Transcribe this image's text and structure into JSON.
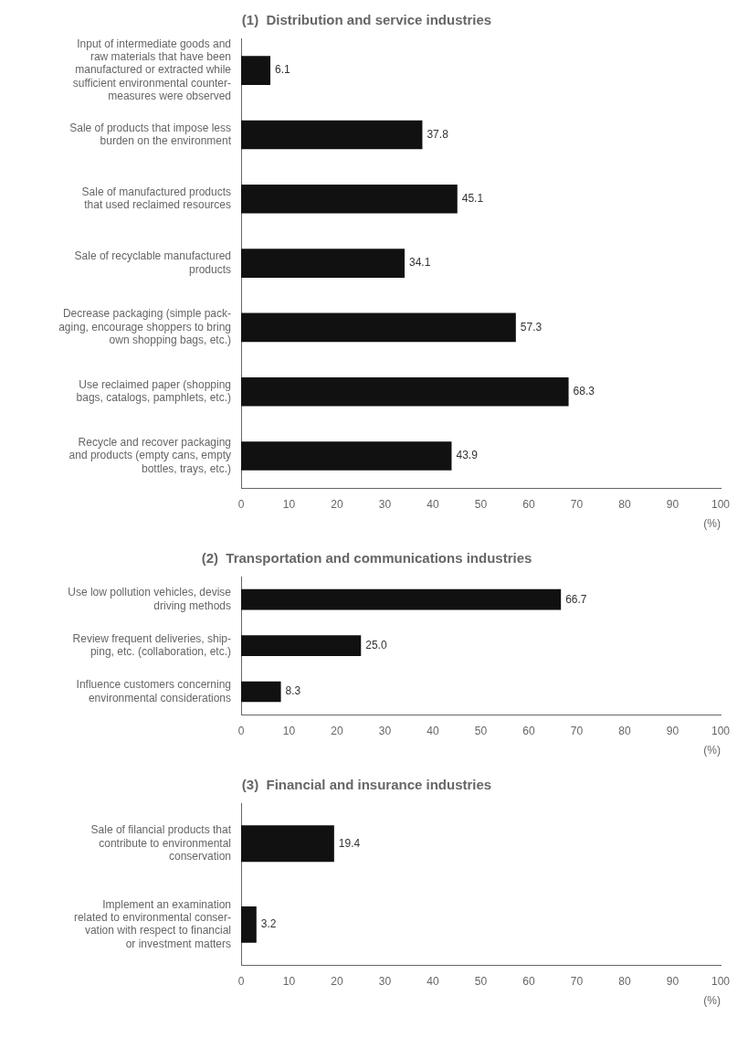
{
  "chart_data": [
    {
      "type": "bar",
      "orientation": "horizontal",
      "title": "(1)  Distribution and service industries",
      "categories": [
        "Input of intermediate goods and\nraw materials that have been\nmanufactured or extracted while\nsufficient environmental counter-\nmeasures were observed",
        "Sale of products that impose less\nburden on the environment",
        "Sale of manufactured products\nthat used reclaimed resources",
        "Sale of recyclable manufactured\nproducts",
        "Decrease packaging (simple pack-\naging, encourage shoppers to bring\nown shopping bags, etc.)",
        "Use reclaimed paper (shopping\nbags, catalogs, pamphlets, etc.)",
        "Recycle and recover packaging\nand products (empty cans, empty\nbottles, trays, etc.)"
      ],
      "values": [
        6.1,
        37.8,
        45.1,
        34.1,
        57.3,
        68.3,
        43.9
      ],
      "color": "#111111",
      "xlim": [
        0,
        100
      ],
      "xticks": [
        0,
        10,
        20,
        30,
        40,
        50,
        60,
        70,
        80,
        90,
        100
      ],
      "xlabel": "(%)",
      "data_labels": true,
      "grid": false
    },
    {
      "type": "bar",
      "orientation": "horizontal",
      "title": "(2)  Transportation and communications industries",
      "categories": [
        "Use low pollution vehicles, devise\ndriving methods",
        "Review frequent deliveries, ship-\nping, etc. (collaboration, etc.)",
        "Influence customers concerning\nenvironmental considerations"
      ],
      "values": [
        66.7,
        25.0,
        8.3
      ],
      "value_labels": [
        "66.7",
        "25.0",
        "8.3"
      ],
      "color": "#111111",
      "xlim": [
        0,
        100
      ],
      "xticks": [
        0,
        10,
        20,
        30,
        40,
        50,
        60,
        70,
        80,
        90,
        100
      ],
      "xlabel": "(%)",
      "data_labels": true,
      "grid": false
    },
    {
      "type": "bar",
      "orientation": "horizontal",
      "title": "(3)  Financial and insurance industries",
      "categories": [
        "Sale of filancial products that\ncontribute to environmental\nconservation",
        "Implement an examination\nrelated to environmental conser-\nvation with respect to financial\nor investment matters"
      ],
      "values": [
        19.4,
        3.2
      ],
      "color": "#111111",
      "xlim": [
        0,
        100
      ],
      "xticks": [
        0,
        10,
        20,
        30,
        40,
        50,
        60,
        70,
        80,
        90,
        100
      ],
      "xlabel": "(%)",
      "data_labels": true,
      "grid": false
    }
  ]
}
